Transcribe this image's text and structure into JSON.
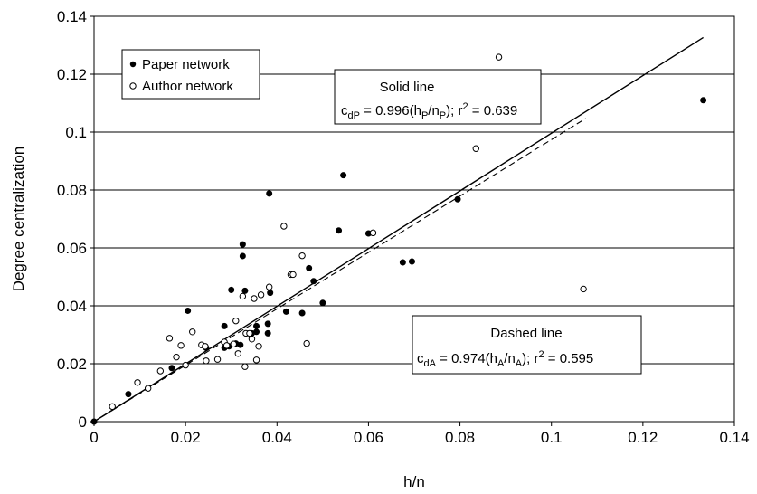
{
  "chart_data": {
    "type": "scatter",
    "xlabel": "h/n",
    "ylabel": "Degree centralization",
    "xlim": [
      0,
      0.14
    ],
    "ylim": [
      0,
      0.14
    ],
    "xticks": [
      "0",
      "0.02",
      "0.04",
      "0.06",
      "0.08",
      "0.1",
      "0.12",
      "0.14"
    ],
    "yticks": [
      "0",
      "0.02",
      "0.04",
      "0.06",
      "0.08",
      "0.1",
      "0.12",
      "0.14"
    ],
    "grid": true,
    "legend_position": "top-left",
    "series": [
      {
        "name": "Paper network",
        "marker": "filled-circle",
        "color": "#000000",
        "x": [
          0,
          0.0075,
          0.017,
          0.0205,
          0.0245,
          0.0285,
          0.0285,
          0.0295,
          0.03,
          0.031,
          0.032,
          0.0325,
          0.0325,
          0.033,
          0.0345,
          0.0355,
          0.0355,
          0.038,
          0.038,
          0.0383,
          0.0385,
          0.042,
          0.0455,
          0.047,
          0.048,
          0.05,
          0.0535,
          0.0545,
          0.06,
          0.0675,
          0.0695,
          0.0795,
          0.1332
        ],
        "y": [
          0,
          0.0095,
          0.0185,
          0.0383,
          0.0255,
          0.0255,
          0.033,
          0.026,
          0.0455,
          0.027,
          0.0265,
          0.0612,
          0.0572,
          0.0452,
          0.0305,
          0.031,
          0.033,
          0.0305,
          0.0338,
          0.0788,
          0.0445,
          0.038,
          0.0375,
          0.053,
          0.0485,
          0.041,
          0.066,
          0.0851,
          0.065,
          0.055,
          0.0553,
          0.0768,
          0.111
        ]
      },
      {
        "name": "Author network",
        "marker": "open-circle",
        "color": "#000000",
        "x": [
          0.004,
          0.0095,
          0.0118,
          0.0145,
          0.0165,
          0.018,
          0.019,
          0.02,
          0.0215,
          0.0235,
          0.0243,
          0.0245,
          0.027,
          0.0285,
          0.029,
          0.0305,
          0.031,
          0.0315,
          0.0325,
          0.033,
          0.0332,
          0.034,
          0.0345,
          0.035,
          0.0355,
          0.036,
          0.0365,
          0.0383,
          0.0415,
          0.043,
          0.0435,
          0.0455,
          0.0465,
          0.061,
          0.0835,
          0.0885,
          0.107
        ],
        "y": [
          0.0052,
          0.0135,
          0.0115,
          0.0175,
          0.0288,
          0.0223,
          0.0263,
          0.0195,
          0.031,
          0.0265,
          0.026,
          0.021,
          0.0215,
          0.0275,
          0.0263,
          0.0268,
          0.0348,
          0.0235,
          0.0433,
          0.019,
          0.0305,
          0.0305,
          0.0285,
          0.0425,
          0.0213,
          0.026,
          0.0438,
          0.0465,
          0.0675,
          0.0508,
          0.0508,
          0.0573,
          0.027,
          0.0652,
          0.0943,
          0.1259,
          0.0458
        ]
      }
    ],
    "fit_lines": [
      {
        "style": "solid",
        "slope": 0.996,
        "x_end": 0.1332
      },
      {
        "style": "dashed",
        "slope": 0.974,
        "x_end": 0.1075
      }
    ],
    "annotations": [
      {
        "title": "Solid line",
        "formula": [
          "c",
          "dP",
          " = 0.996(h",
          "P",
          "/n",
          "P",
          "); r",
          "2",
          " = 0.639"
        ]
      },
      {
        "title": "Dashed line",
        "formula": [
          "c",
          "dA",
          " = 0.974(h",
          "A",
          "/n",
          "A",
          "); r",
          "2",
          " = 0.595"
        ]
      }
    ]
  }
}
